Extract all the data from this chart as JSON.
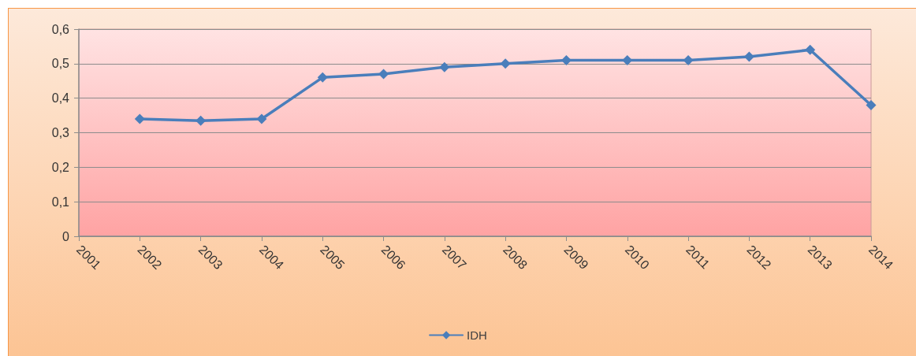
{
  "chart_data": {
    "type": "line",
    "categories": [
      "2001",
      "2002",
      "2003",
      "2004",
      "2005",
      "2006",
      "2007",
      "2008",
      "2009",
      "2010",
      "2011",
      "2012",
      "2013",
      "2014"
    ],
    "series": [
      {
        "name": "IDH",
        "color": "#4a7ebb",
        "values": [
          null,
          0.34,
          0.335,
          0.34,
          0.46,
          0.47,
          0.49,
          0.5,
          0.51,
          0.51,
          0.51,
          0.52,
          0.54,
          0.38
        ]
      }
    ],
    "ylim": [
      0,
      0.6
    ],
    "yticks": [
      0,
      {
        "value": 0.1,
        "label": "0,1"
      },
      {
        "value": 0.2,
        "label": "0,2"
      },
      {
        "value": 0.3,
        "label": "0,3"
      },
      {
        "value": 0.4,
        "label": "0,4"
      },
      {
        "value": 0.5,
        "label": "0,5"
      },
      {
        "value": 0.6,
        "label": "0,6"
      }
    ],
    "grid": "y",
    "legend": "bottom",
    "marker": "diamond",
    "line_style": "solid"
  }
}
